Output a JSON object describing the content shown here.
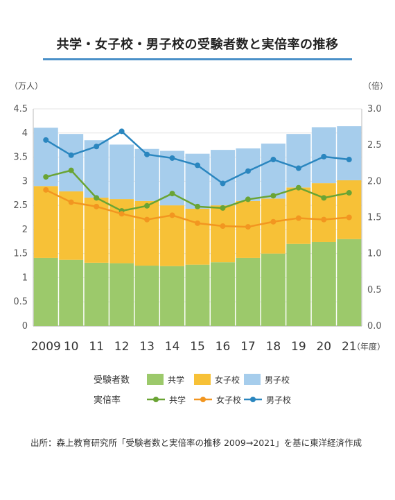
{
  "title": "共学・女子校・男子校の受験者数と実倍率の推移",
  "source": "出所：森上教育研究所「受験者数と実倍率の推移 2009→2021」を基に東洋経済作成",
  "chart_data": {
    "type": "bar",
    "stacked": true,
    "categories": [
      "2009",
      "10",
      "11",
      "12",
      "13",
      "14",
      "15",
      "16",
      "17",
      "18",
      "19",
      "20",
      "21"
    ],
    "x_unit": "（年度）",
    "y_left": {
      "unit": "（万人）",
      "ylim": [
        0,
        4.5
      ],
      "ticks": [
        "0",
        "0.5",
        "1",
        "1.5",
        "2",
        "2.5",
        "3",
        "3.5",
        "4",
        "4.5"
      ]
    },
    "y_right": {
      "unit": "（倍）",
      "ylim": [
        0,
        3.0
      ],
      "ticks": [
        "0.0",
        "0.5",
        "1.0",
        "1.5",
        "2.0",
        "2.5",
        "3.0"
      ]
    },
    "grid": "horizontal",
    "bar_series": [
      {
        "name": "共学",
        "color": "#9cc96b",
        "values": [
          1.41,
          1.37,
          1.31,
          1.3,
          1.25,
          1.24,
          1.27,
          1.32,
          1.41,
          1.5,
          1.7,
          1.74,
          1.8
        ]
      },
      {
        "name": "女子校",
        "color": "#f7c137",
        "values": [
          1.49,
          1.42,
          1.35,
          1.33,
          1.34,
          1.26,
          1.16,
          1.18,
          1.18,
          1.14,
          1.17,
          1.22,
          1.22
        ]
      },
      {
        "name": "男子校",
        "color": "#a6cdec",
        "values": [
          1.21,
          1.19,
          1.19,
          1.13,
          1.08,
          1.13,
          1.14,
          1.15,
          1.09,
          1.14,
          1.11,
          1.16,
          1.12
        ]
      }
    ],
    "line_series": [
      {
        "name": "共学",
        "color": "#6aa434",
        "values": [
          2.06,
          2.15,
          1.77,
          1.59,
          1.66,
          1.83,
          1.65,
          1.63,
          1.75,
          1.8,
          1.91,
          1.77,
          1.84
        ]
      },
      {
        "name": "女子校",
        "color": "#f29620",
        "values": [
          1.88,
          1.71,
          1.65,
          1.55,
          1.47,
          1.53,
          1.42,
          1.38,
          1.37,
          1.44,
          1.49,
          1.47,
          1.5
        ]
      },
      {
        "name": "男子校",
        "color": "#2a86bf",
        "values": [
          2.57,
          2.36,
          2.48,
          2.69,
          2.37,
          2.32,
          2.22,
          1.97,
          2.14,
          2.3,
          2.18,
          2.34,
          2.3
        ]
      }
    ],
    "legend": {
      "bars_label": "受験者数",
      "lines_label": "実倍率",
      "placement": "bottom"
    }
  }
}
